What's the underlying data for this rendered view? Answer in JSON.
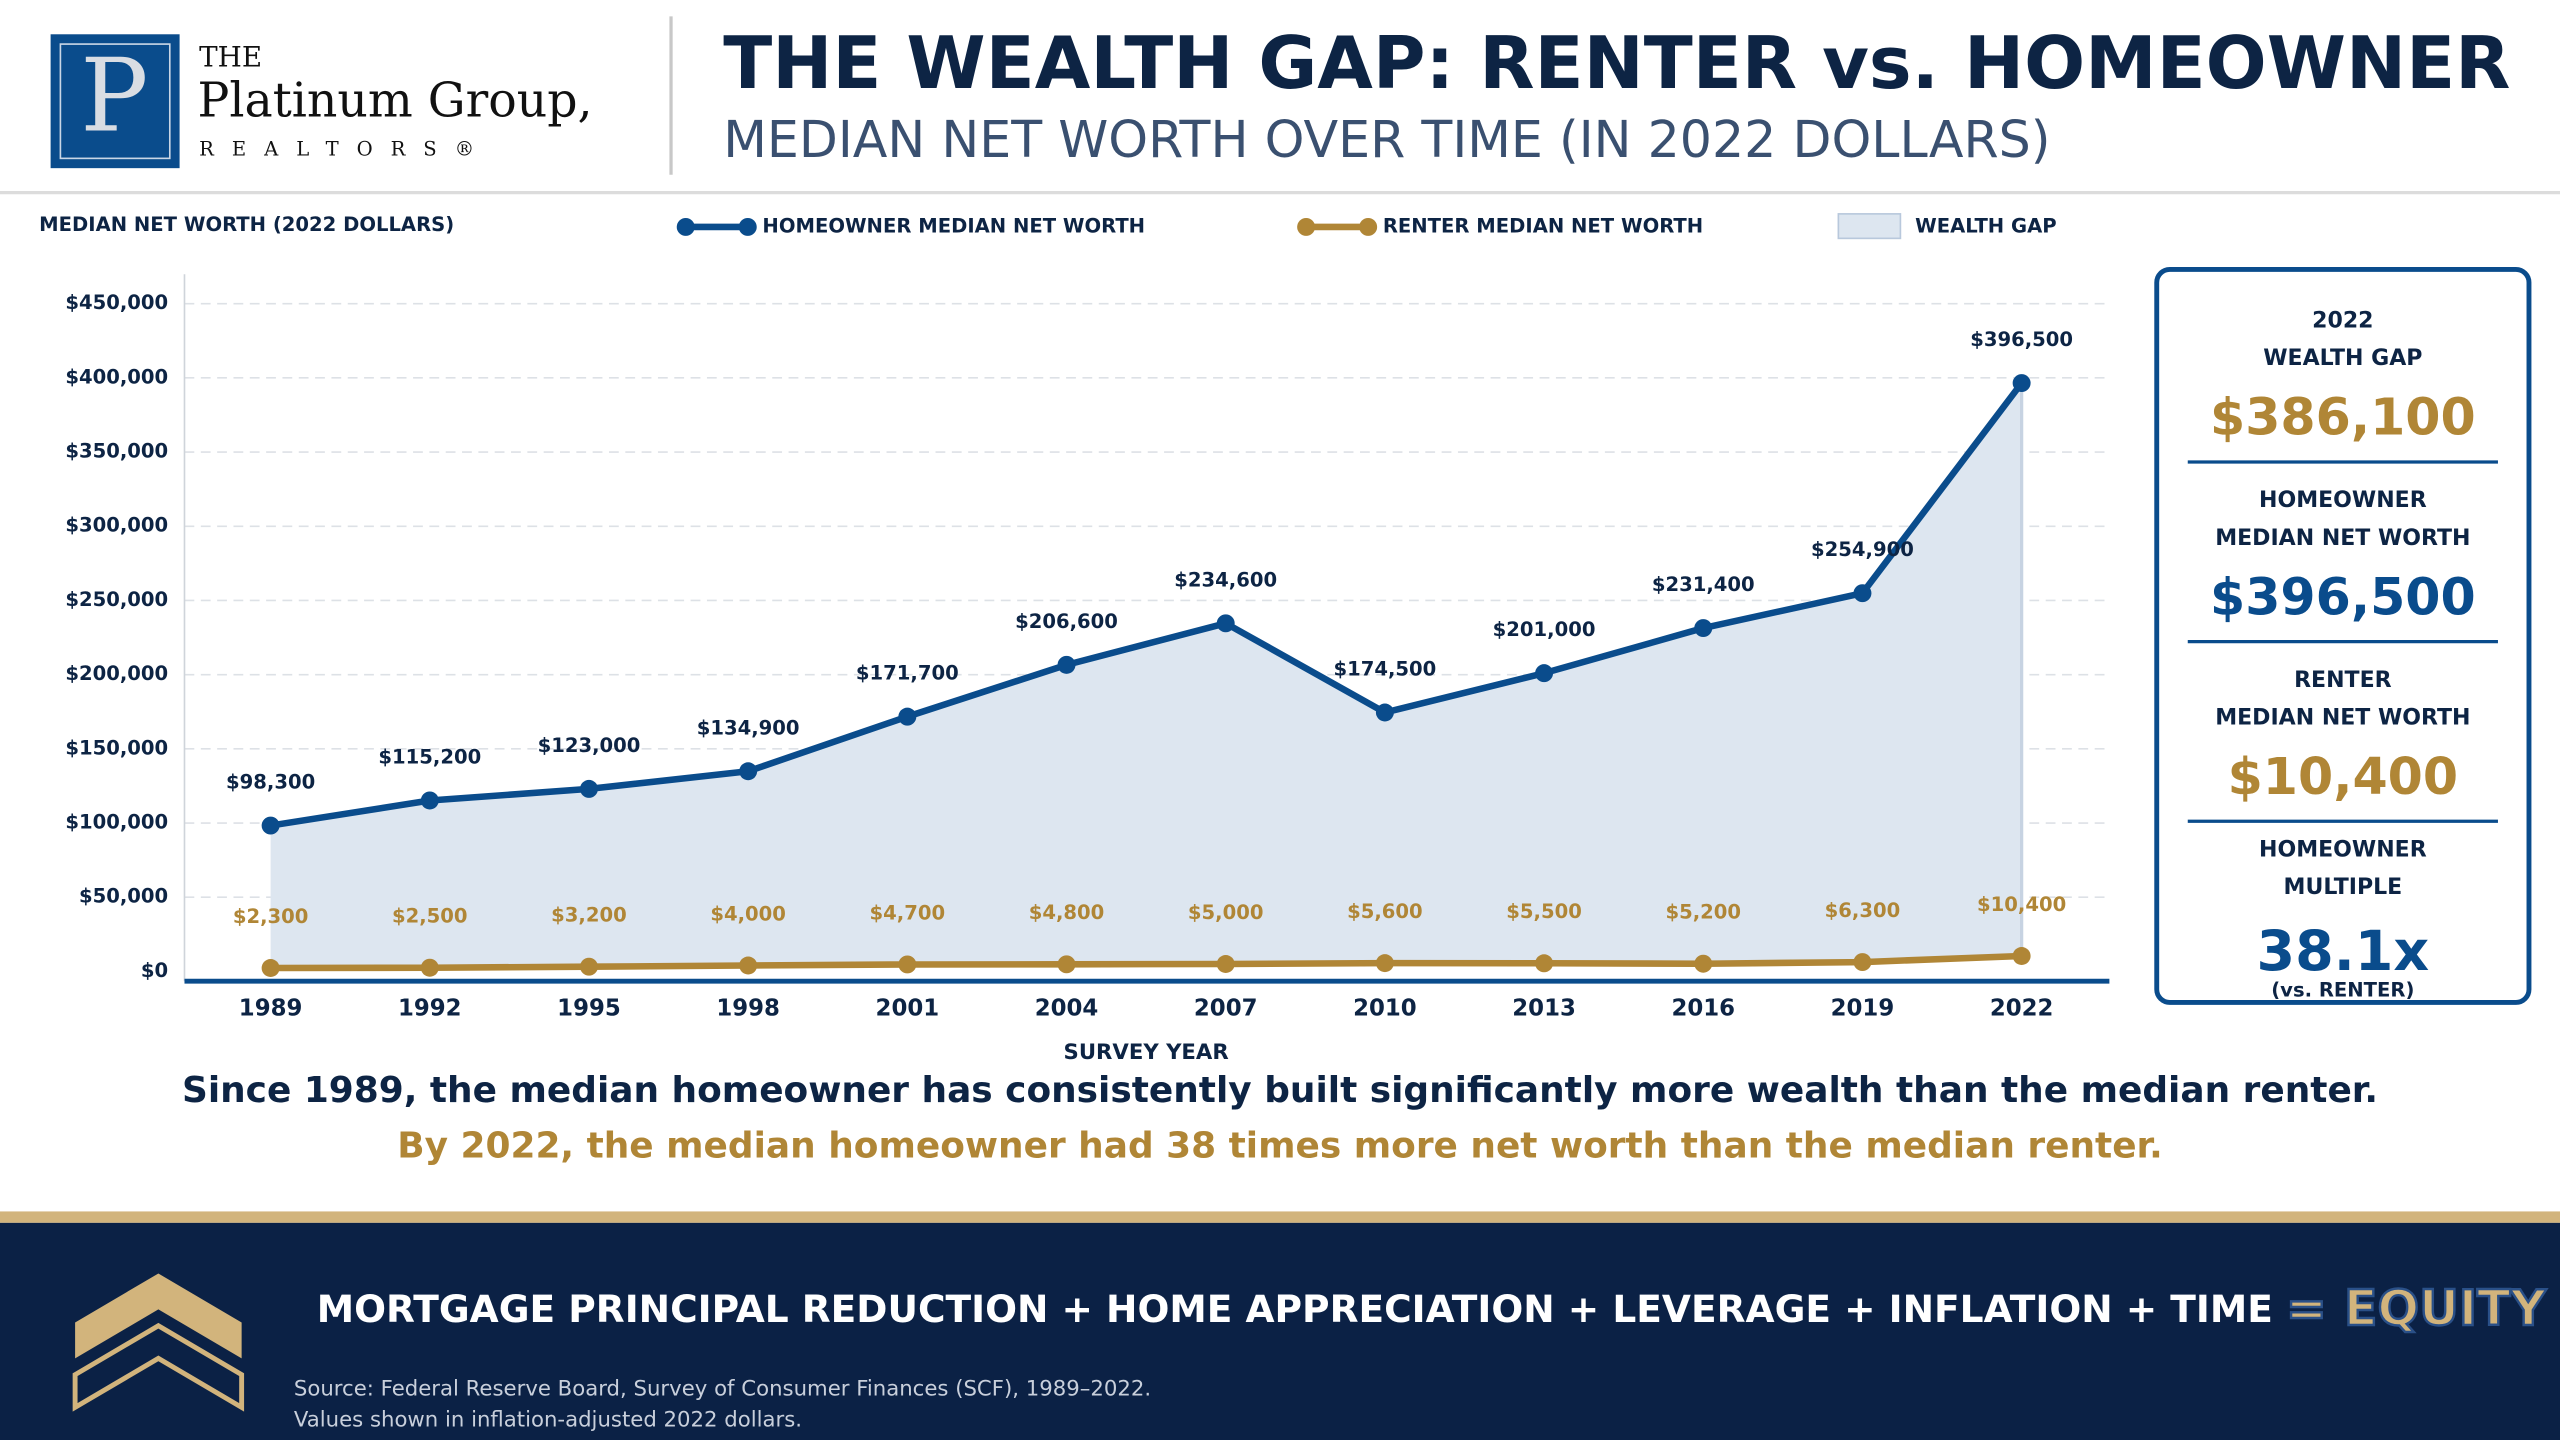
{
  "header": {
    "logo": {
      "the": "THE",
      "name": "Platinum Group,",
      "sub": "REALTORS®"
    },
    "title": "THE WEALTH GAP: RENTER vs. HOMEOWNER",
    "subtitle": "MEDIAN NET WORTH OVER TIME (IN 2022 DOLLARS)"
  },
  "chart_data": {
    "type": "line",
    "y_label": "MEDIAN NET WORTH (2022 DOLLARS)",
    "x_label": "SURVEY YEAR",
    "categories": [
      "1989",
      "1992",
      "1995",
      "1998",
      "2001",
      "2004",
      "2007",
      "2010",
      "2013",
      "2016",
      "2019",
      "2022"
    ],
    "series": [
      {
        "name": "HOMEOWNER MEDIAN NET WORTH",
        "color": "#0a4c8c",
        "values": [
          98300,
          115200,
          123000,
          134900,
          171700,
          206600,
          234600,
          174500,
          201000,
          231400,
          254900,
          396500
        ],
        "value_labels": [
          "$98,300",
          "$115,200",
          "$123,000",
          "$134,900",
          "$171,700",
          "$206,600",
          "$234,600",
          "$174,500",
          "$201,000",
          "$231,400",
          "$254,900",
          "$396,500"
        ]
      },
      {
        "name": "RENTER MEDIAN NET WORTH",
        "color": "#b08636",
        "values": [
          2300,
          2500,
          3200,
          4000,
          4700,
          4800,
          5000,
          5600,
          5500,
          5200,
          6300,
          10400
        ],
        "value_labels": [
          "$2,300",
          "$2,500",
          "$3,200",
          "$4,000",
          "$4,700",
          "$4,800",
          "$5,000",
          "$5,600",
          "$5,500",
          "$5,200",
          "$6,300",
          "$10,400"
        ]
      }
    ],
    "area": {
      "name": "WEALTH GAP",
      "color": "#dde6f0"
    },
    "ylim": [
      0,
      450000
    ],
    "yticks": [
      {
        "value": 0,
        "label": "$0"
      },
      {
        "value": 50000,
        "label": "$50,000"
      },
      {
        "value": 100000,
        "label": "$100,000"
      },
      {
        "value": 150000,
        "label": "$150,000"
      },
      {
        "value": 200000,
        "label": "$200,000"
      },
      {
        "value": 250000,
        "label": "$250,000"
      },
      {
        "value": 300000,
        "label": "$300,000"
      },
      {
        "value": 350000,
        "label": "$350,000"
      },
      {
        "value": 400000,
        "label": "$400,000"
      },
      {
        "value": 450000,
        "label": "$450,000"
      }
    ],
    "grid": true
  },
  "summary": [
    {
      "label": [
        "2022",
        "WEALTH GAP"
      ],
      "value": "$386,100"
    },
    {
      "label": [
        "HOMEOWNER",
        "MEDIAN NET WORTH"
      ],
      "value": "$396,500"
    },
    {
      "label": [
        "RENTER",
        "MEDIAN NET WORTH"
      ],
      "value": "$10,400"
    },
    {
      "label": [
        "HOMEOWNER",
        "MULTIPLE"
      ],
      "value": "38.1x",
      "note": "(vs. RENTER)"
    }
  ],
  "captions": [
    "Since 1989, the median homeowner has consistently built significantly more wealth than the median renter.",
    "By 2022, the median homeowner had 38 times more net worth than the median renter."
  ],
  "footer": {
    "formula": "MORTGAGE PRINCIPAL REDUCTION + HOME APPRECIATION + LEVERAGE + INFLATION + TIME",
    "result": "= EQUITY",
    "source": [
      "Source: Federal Reserve Board, Survey of Consumer Finances (SCF), 1989–2022.",
      "Values shown in inflation-adjusted 2022 dollars."
    ]
  }
}
